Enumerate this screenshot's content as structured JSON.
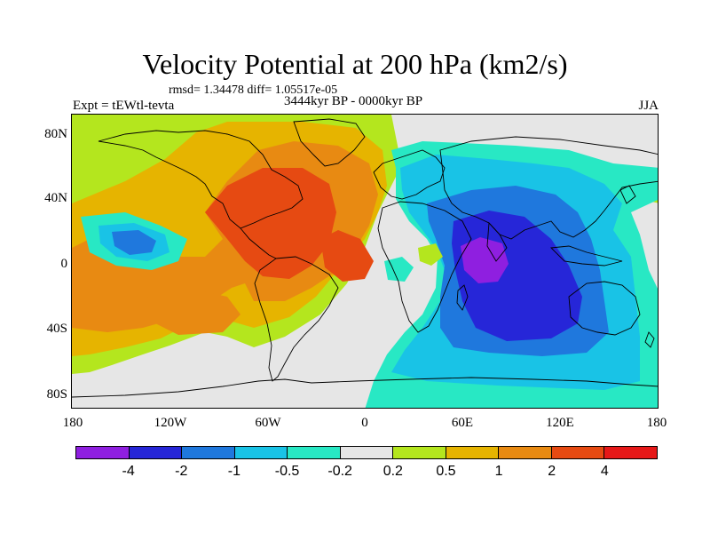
{
  "title": "Velocity Potential at 200 hPa (km2/s)",
  "stats": "rmsd= 1.34478 diff= 1.05517e-05",
  "expt": "Expt = tEWtl-tevta",
  "period": "3444kyr BP - 0000kyr BP",
  "season": "JJA",
  "lat_labels": [
    "80N",
    "40N",
    "0",
    "40S",
    "80S"
  ],
  "lon_labels": [
    "180",
    "120W",
    "60W",
    "0",
    "60E",
    "120E",
    "180"
  ],
  "colorbar": {
    "colors": [
      "#8f1fe0",
      "#2626d8",
      "#1f78dd",
      "#19c3e6",
      "#28e8c4",
      "#e6e6e6",
      "#b4e61e",
      "#e6b400",
      "#e88a12",
      "#e64a12",
      "#e61818"
    ],
    "labels": [
      "-4",
      "-2",
      "-1",
      "-0.5",
      "-0.2",
      "0.2",
      "0.5",
      "1",
      "2",
      "4"
    ]
  },
  "region_names": [
    "positive-pacific-atlantic-lobe",
    "negative-indian-ocean-lobe"
  ]
}
